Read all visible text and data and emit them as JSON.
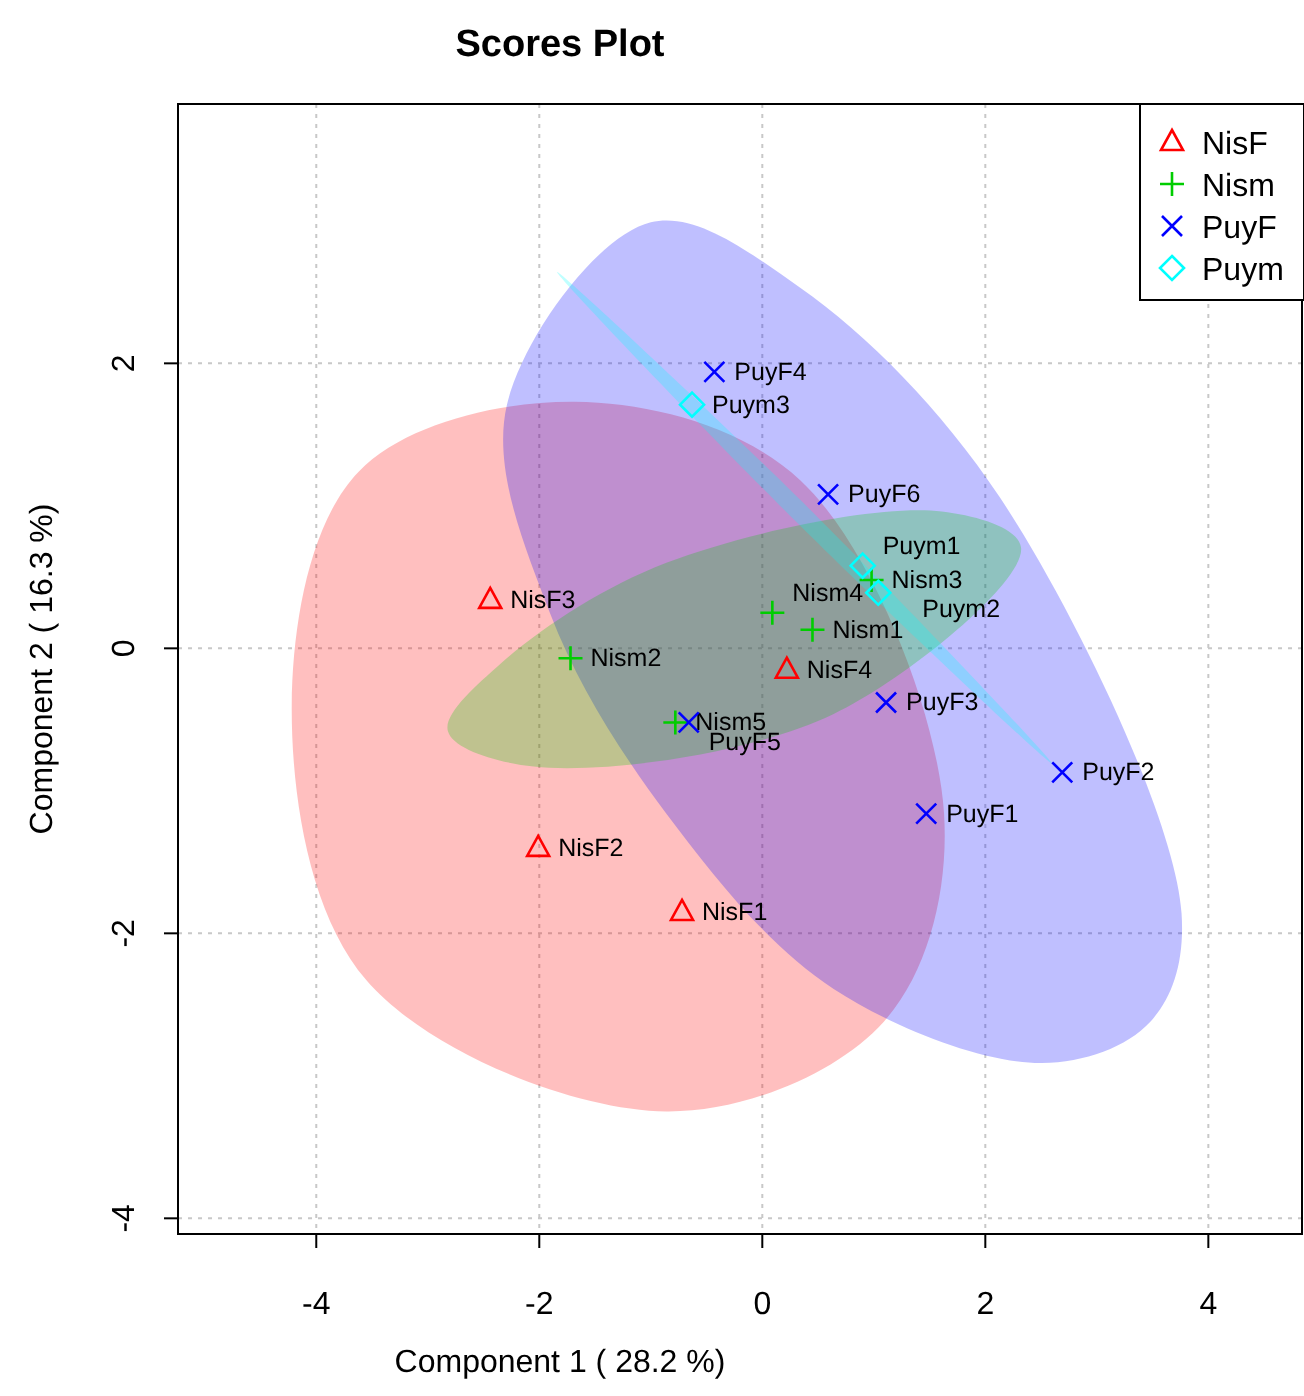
{
  "chart_data": {
    "type": "scatter",
    "title": "Scores Plot",
    "xlabel": "Component 1 ( 28.2 %)",
    "ylabel": "Component 2 ( 16.3 %)",
    "xlim": [
      -5.24,
      4.84
    ],
    "ylim": [
      -4.11,
      3.82
    ],
    "xticks": [
      -4,
      -2,
      0,
      2,
      4
    ],
    "yticks": [
      -4,
      -2,
      0,
      2
    ],
    "grid": true,
    "legend": "top right",
    "series": [
      {
        "name": "NisF",
        "color": "#ff0000",
        "marker": "triangle",
        "x": [
          -0.72,
          -2.01,
          -2.44,
          0.22
        ],
        "values": [
          -1.85,
          -1.4,
          0.34,
          -0.15
        ],
        "value_labels": [
          "NisF1",
          "NisF2",
          "NisF3",
          "NisF4"
        ]
      },
      {
        "name": "Nism",
        "color": "#00cd00",
        "marker": "cross",
        "x": [
          0.45,
          -1.72,
          0.98,
          0.09,
          -0.78
        ],
        "values": [
          0.13,
          -0.07,
          0.48,
          0.25,
          -0.52
        ],
        "value_labels": [
          "Nism1",
          "Nism2",
          "Nism3",
          "Nism4",
          "Nism5"
        ]
      },
      {
        "name": "PuyF",
        "color": "#0000ff",
        "marker": "x",
        "x": [
          1.47,
          2.69,
          1.11,
          -0.43,
          -0.66,
          0.59
        ],
        "values": [
          -1.16,
          -0.87,
          -0.38,
          1.94,
          -0.52,
          1.08
        ],
        "value_labels": [
          "PuyF1",
          "PuyF2",
          "PuyF3",
          "PuyF4",
          "PuyF5",
          "PuyF6"
        ]
      },
      {
        "name": "Puym",
        "color": "#00ffff",
        "marker": "diamond",
        "x": [
          0.9,
          1.04,
          -0.63
        ],
        "values": [
          0.58,
          0.39,
          1.71
        ],
        "value_labels": [
          "Puym1",
          "Puym2",
          "Puym3"
        ]
      }
    ]
  }
}
